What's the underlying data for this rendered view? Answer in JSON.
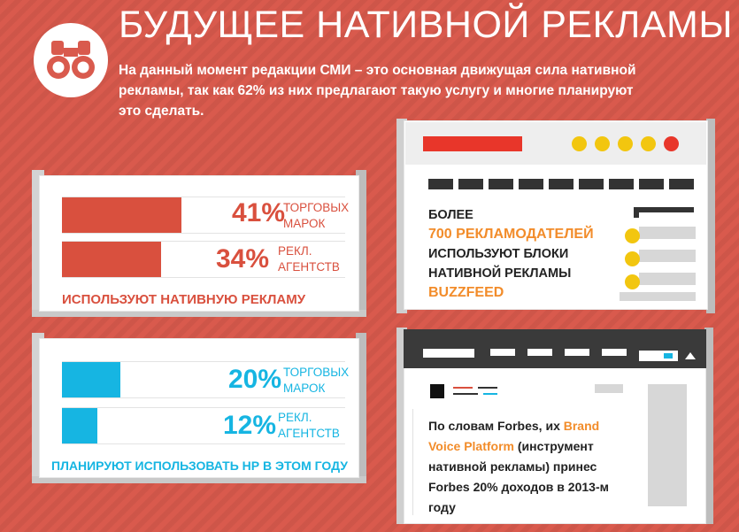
{
  "header": {
    "title": "БУДУЩЕЕ НАТИВНОЙ РЕКЛАМЫ",
    "intro_lines": [
      "На данный момент редакции СМИ – это основная движущая сила нативной",
      "рекламы, так как 62% из них предлагают такую услугу и многие планируют",
      "это сделать."
    ],
    "logo_icon": "binoculars-icon"
  },
  "panel_current": {
    "bars": [
      {
        "percent_label": "41%",
        "value": 41,
        "label_lines": [
          "ТОРГОВЫХ",
          "МАРОК"
        ]
      },
      {
        "percent_label": "34%",
        "value": 34,
        "label_lines": [
          "РЕКЛ.",
          "АГЕНТСТВ"
        ]
      }
    ],
    "caption": "ИСПОЛЬЗУЮТ НАТИВНУЮ РЕКЛАМУ",
    "color": "#d9503e"
  },
  "panel_planned": {
    "bars": [
      {
        "percent_label": "20%",
        "value": 20,
        "label_lines": [
          "ТОРГОВЫХ",
          "МАРОК"
        ]
      },
      {
        "percent_label": "12%",
        "value": 12,
        "label_lines": [
          "РЕКЛ.",
          "АГЕНТСТВ"
        ]
      }
    ],
    "caption": "ПЛАНИРУЮТ ИСПОЛЬЗОВАТЬ НР В ЭТОМ ГОДУ",
    "color": "#16b5e2"
  },
  "buzzfeed": {
    "line1": "БОЛЕЕ",
    "line2": "700 РЕКЛАМОДАТЕЛЕЙ",
    "line3": "ИСПОЛЬЗУЮТ БЛОКИ",
    "line4": "НАТИВНОЙ РЕКЛАМЫ",
    "line5": "BUZZFEED",
    "dot_colors": [
      "#f2c60f",
      "#f2c60f",
      "#f2c60f",
      "#f2c60f",
      "#e8362a"
    ]
  },
  "forbes": {
    "line1_a": "По словам Forbes, их ",
    "line1_b": "Brand",
    "line2_a": "Voice Platform",
    "line2_b": " (инструмент",
    "line3": "нативной рекламы) принес",
    "line4": "Forbes 20% доходов в 2013-м",
    "line5": "году"
  },
  "colors": {
    "background": "#d95a4d",
    "accent_red": "#d9503e",
    "accent_blue": "#16b5e2",
    "accent_orange": "#f28c2a",
    "accent_yellow": "#f2c60f"
  }
}
